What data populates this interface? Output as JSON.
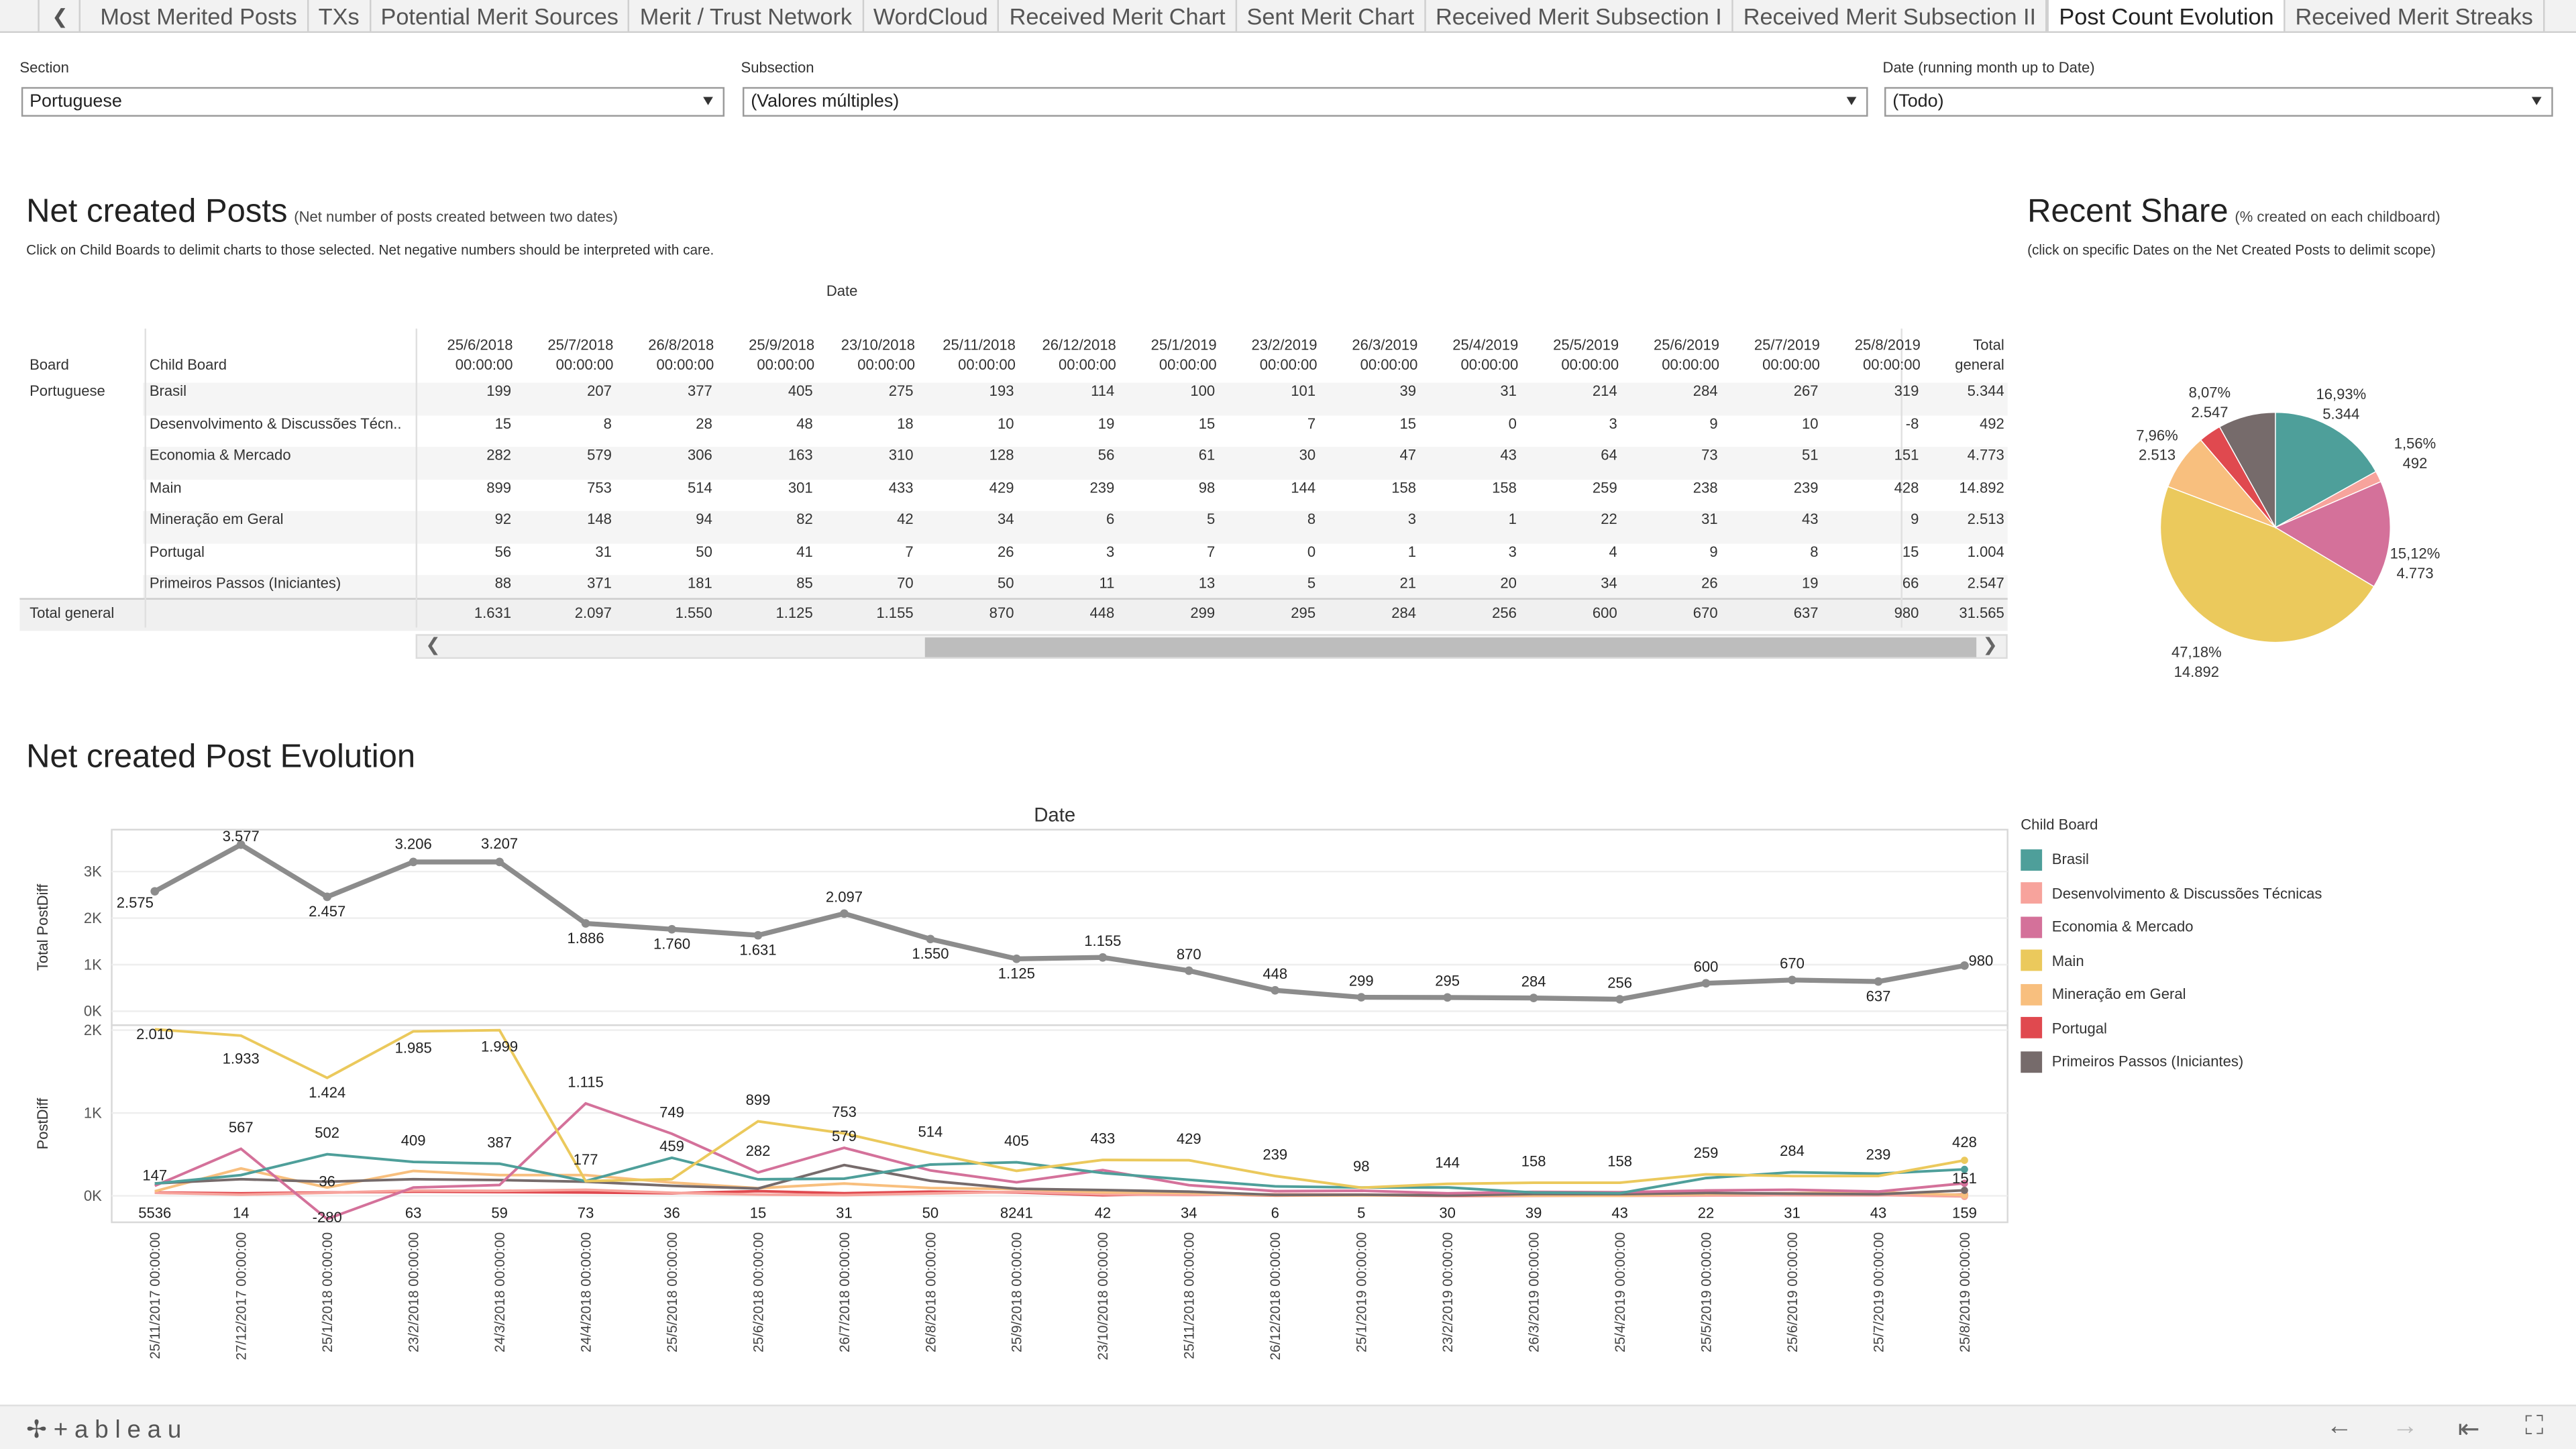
{
  "tabs": [
    "Most Merited Posts",
    "TXs",
    "Potential Merit Sources",
    "Merit / Trust Network",
    "WordCloud",
    "Received Merit Chart",
    "Sent Merit Chart",
    "Received Merit Subsection I",
    "Received Merit Subsection II",
    "Post Count Evolution",
    "Received Merit Streaks"
  ],
  "active_tab": "Post Count Evolution",
  "filters": {
    "section_label": "Section",
    "section_value": "Portuguese",
    "subsection_label": "Subsection",
    "subsection_value": "(Valores múltiples)",
    "date_label": "Date (running month up to Date)",
    "date_value": "(Todo)"
  },
  "net_posts": {
    "title": "Net created Posts",
    "subtitle": "(Net number of posts created between two dates)",
    "note": "Click on Child Boards to delimit charts to those selected. Net negative numbers should be interpreted  with care."
  },
  "recent_share": {
    "title": "Recent Share",
    "subtitle": "(% created on each childboard)",
    "note": "(click on specific Dates on the Net Created Posts to delimit scope)"
  },
  "evolution": {
    "title": "Net created Post Evolution"
  },
  "crosstab": {
    "date_header": "Date",
    "board_header": "Board",
    "child_header": "Child Board",
    "board_value": "Portuguese",
    "total_row_label": "Total general",
    "total_col_label": [
      "Total",
      "general"
    ],
    "dates": [
      "25/6/2018",
      "25/7/2018",
      "26/8/2018",
      "25/9/2018",
      "23/10/2018",
      "25/11/2018",
      "26/12/2018",
      "25/1/2019",
      "23/2/2019",
      "26/3/2019",
      "25/4/2019",
      "25/5/2019",
      "25/6/2019",
      "25/7/2019",
      "25/8/2019"
    ],
    "time": "00:00:00",
    "rows": [
      {
        "name": "Brasil",
        "values": [
          "199",
          "207",
          "377",
          "405",
          "275",
          "193",
          "114",
          "100",
          "101",
          "39",
          "31",
          "214",
          "284",
          "267",
          "319"
        ],
        "total": "5.344"
      },
      {
        "name": "Desenvolvimento & Discussões Técn..",
        "values": [
          "15",
          "8",
          "28",
          "48",
          "18",
          "10",
          "19",
          "15",
          "7",
          "15",
          "0",
          "3",
          "9",
          "10",
          "-8"
        ],
        "total": "492"
      },
      {
        "name": "Economia & Mercado",
        "values": [
          "282",
          "579",
          "306",
          "163",
          "310",
          "128",
          "56",
          "61",
          "30",
          "47",
          "43",
          "64",
          "73",
          "51",
          "151"
        ],
        "total": "4.773"
      },
      {
        "name": "Main",
        "values": [
          "899",
          "753",
          "514",
          "301",
          "433",
          "429",
          "239",
          "98",
          "144",
          "158",
          "158",
          "259",
          "238",
          "239",
          "428"
        ],
        "total": "14.892"
      },
      {
        "name": "Mineração em Geral",
        "values": [
          "92",
          "148",
          "94",
          "82",
          "42",
          "34",
          "6",
          "5",
          "8",
          "3",
          "1",
          "22",
          "31",
          "43",
          "9"
        ],
        "total": "2.513"
      },
      {
        "name": "Portugal",
        "values": [
          "56",
          "31",
          "50",
          "41",
          "7",
          "26",
          "3",
          "7",
          "0",
          "1",
          "3",
          "4",
          "9",
          "8",
          "15"
        ],
        "total": "1.004"
      },
      {
        "name": "Primeiros Passos (Iniciantes)",
        "values": [
          "88",
          "371",
          "181",
          "85",
          "70",
          "50",
          "11",
          "13",
          "5",
          "21",
          "20",
          "34",
          "26",
          "19",
          "66"
        ],
        "total": "2.547"
      }
    ],
    "totals": [
      "1.631",
      "2.097",
      "1.550",
      "1.125",
      "1.155",
      "870",
      "448",
      "299",
      "295",
      "284",
      "256",
      "600",
      "670",
      "637",
      "980"
    ],
    "grand_total": "31.565"
  },
  "legend": {
    "title": "Child Board",
    "items": [
      {
        "name": "Brasil",
        "color": "#4e9f9a"
      },
      {
        "name": "Desenvolvimento & Discussões Técnicas",
        "color": "#f7a39c"
      },
      {
        "name": "Economia & Mercado",
        "color": "#d4719a"
      },
      {
        "name": "Main",
        "color": "#ebc95c"
      },
      {
        "name": "Mineração em Geral",
        "color": "#f8bf7e"
      },
      {
        "name": "Portugal",
        "color": "#e0494f"
      },
      {
        "name": "Primeiros Passos (Iniciantes)",
        "color": "#766b6b"
      }
    ]
  },
  "chart_data": [
    {
      "type": "pie",
      "title": "Recent Share",
      "slices": [
        {
          "name": "Brasil",
          "value": 5344,
          "pct_label": "16,93%",
          "value_label": "5.344",
          "color": "#4e9f9a"
        },
        {
          "name": "Desenvolvimento & Discussões Técnicas",
          "value": 492,
          "pct_label": "1,56%",
          "value_label": "492",
          "color": "#f7a39c"
        },
        {
          "name": "Economia & Mercado",
          "value": 4773,
          "pct_label": "15,12%",
          "value_label": "4.773",
          "color": "#d4719a"
        },
        {
          "name": "Main",
          "value": 14892,
          "pct_label": "47,18%",
          "value_label": "14.892",
          "color": "#ebc95c"
        },
        {
          "name": "Mineração em Geral",
          "value": 2513,
          "pct_label": "7,96%",
          "value_label": "2.513",
          "color": "#f8bf7e"
        },
        {
          "name": "Portugal",
          "value": 1004,
          "pct_label": "",
          "value_label": "",
          "color": "#e0494f"
        },
        {
          "name": "Primeiros Passos (Iniciantes)",
          "value": 2547,
          "pct_label": "8,07%",
          "value_label": "2.547",
          "color": "#766b6b"
        }
      ]
    },
    {
      "type": "line",
      "title": "Date",
      "x": [
        "25/11/2017 00:00:00",
        "27/12/2017 00:00:00",
        "25/1/2018 00:00:00",
        "23/2/2018 00:00:00",
        "24/3/2018 00:00:00",
        "24/4/2018 00:00:00",
        "25/5/2018 00:00:00",
        "25/6/2018 00:00:00",
        "26/7/2018 00:00:00",
        "26/8/2018 00:00:00",
        "25/9/2018 00:00:00",
        "23/10/2018 00:00:00",
        "25/11/2018 00:00:00",
        "26/12/2018 00:00:00",
        "25/1/2019 00:00:00",
        "23/2/2019 00:00:00",
        "26/3/2019 00:00:00",
        "25/4/2019 00:00:00",
        "25/5/2019 00:00:00",
        "25/6/2019 00:00:00",
        "25/7/2019 00:00:00",
        "25/8/2019 00:00:00"
      ],
      "top_panel": {
        "ylabel": "Total PostDiff",
        "yticks": [
          "0K",
          "1K",
          "2K",
          "3K"
        ],
        "ylim": [
          -300,
          3900
        ],
        "series": [
          {
            "values": [
              2575,
              3577,
              2457,
              3206,
              3207,
              1886,
              1760,
              1631,
              2097,
              1550,
              1125,
              1155,
              870,
              448,
              299,
              295,
              284,
              256,
              600,
              670,
              637,
              980
            ],
            "labels": [
              "2.575",
              "3.577",
              "2.457",
              "3.206",
              "3.207",
              "1.886",
              "1.760",
              "1.631",
              "2.097",
              "1.550",
              "1.125",
              "1.155",
              "870",
              "448",
              "299",
              "295",
              "284",
              "256",
              "600",
              "670",
              "637",
              "980"
            ],
            "color": "#8c8c8c"
          }
        ]
      },
      "bottom_panel": {
        "ylabel": "PostDiff",
        "yticks": [
          "0K",
          "1K",
          "2K"
        ],
        "ylim": [
          -320,
          2060
        ],
        "series": [
          {
            "name": "Main",
            "color": "#ebc95c",
            "values": [
              2010,
              1933,
              1424,
              1985,
              1999,
              177,
              200,
              899,
              753,
              514,
              301,
              433,
              429,
              239,
              98,
              144,
              158,
              158,
              259,
              238,
              239,
              428
            ]
          },
          {
            "name": "Brasil",
            "color": "#4e9f9a",
            "values": [
              147,
              250,
              502,
              409,
              387,
              177,
              459,
              199,
              207,
              377,
              405,
              275,
              193,
              114,
              100,
              101,
              39,
              31,
              214,
              284,
              267,
              319
            ]
          },
          {
            "name": "Economia & Mercado",
            "color": "#d4719a",
            "values": [
              120,
              567,
              -280,
              100,
              130,
              1115,
              749,
              282,
              579,
              306,
              163,
              310,
              128,
              56,
              61,
              30,
              47,
              43,
              64,
              73,
              51,
              151
            ]
          },
          {
            "name": "Primeiros Passos (Iniciantes)",
            "color": "#766b6b",
            "values": [
              150,
              200,
              170,
              200,
              190,
              170,
              120,
              88,
              371,
              181,
              85,
              70,
              50,
              11,
              13,
              5,
              21,
              20,
              34,
              26,
              19,
              66
            ]
          },
          {
            "name": "Mineração em Geral",
            "color": "#f8bf7e",
            "values": [
              55,
              330,
              100,
              300,
              250,
              250,
              160,
              92,
              148,
              94,
              82,
              42,
              34,
              6,
              5,
              8,
              3,
              1,
              22,
              31,
              43,
              9
            ]
          },
          {
            "name": "Desenvolvimento & Discussões Técnicas",
            "color": "#f7a39c",
            "values": [
              36,
              14,
              36,
              63,
              59,
              73,
              36,
              15,
              8,
              28,
              48,
              18,
              10,
              19,
              15,
              7,
              15,
              0,
              3,
              9,
              10,
              -8
            ]
          },
          {
            "name": "Portugal",
            "color": "#e0494f",
            "values": [
              40,
              30,
              40,
              50,
              45,
              40,
              30,
              56,
              31,
              50,
              41,
              7,
              26,
              3,
              7,
              0,
              1,
              3,
              4,
              9,
              8,
              15
            ]
          }
        ],
        "labels": [
          {
            "i": 0,
            "text": "2.010",
            "v": 2010,
            "dy": 6
          },
          {
            "i": 1,
            "text": "1.933",
            "v": 1933,
            "dy": 17
          },
          {
            "i": 2,
            "text": "1.424",
            "v": 1424,
            "dy": 12
          },
          {
            "i": 3,
            "text": "1.985",
            "v": 1985,
            "dy": 13
          },
          {
            "i": 4,
            "text": "1.999",
            "v": 1999,
            "dy": 13
          },
          {
            "i": 5,
            "text": "1.115",
            "v": 1115,
            "dy": -10
          },
          {
            "i": 6,
            "text": "749",
            "v": 749,
            "dy": -10
          },
          {
            "i": 7,
            "text": "899",
            "v": 899,
            "dy": -10
          },
          {
            "i": 8,
            "text": "753",
            "v": 753,
            "dy": -10
          },
          {
            "i": 9,
            "text": "514",
            "v": 514,
            "dy": -10
          },
          {
            "i": 10,
            "text": "405",
            "v": 405,
            "dy": -10
          },
          {
            "i": 11,
            "text": "433",
            "v": 433,
            "dy": -10
          },
          {
            "i": 12,
            "text": "429",
            "v": 429,
            "dy": -10
          },
          {
            "i": 13,
            "text": "239",
            "v": 239,
            "dy": -10
          },
          {
            "i": 14,
            "text": "98",
            "v": 98,
            "dy": -10
          },
          {
            "i": 15,
            "text": "144",
            "v": 144,
            "dy": -10
          },
          {
            "i": 16,
            "text": "158",
            "v": 158,
            "dy": -10
          },
          {
            "i": 17,
            "text": "158",
            "v": 158,
            "dy": -10
          },
          {
            "i": 18,
            "text": "259",
            "v": 259,
            "dy": -10
          },
          {
            "i": 19,
            "text": "284",
            "v": 284,
            "dy": -10
          },
          {
            "i": 20,
            "text": "239",
            "v": 239,
            "dy": -10
          },
          {
            "i": 21,
            "text": "428",
            "v": 428,
            "dy": -8
          },
          {
            "i": 0,
            "text": "147",
            "v": 147,
            "dy": -2
          },
          {
            "i": 1,
            "text": "567",
            "v": 567,
            "dy": -10
          },
          {
            "i": 2,
            "text": "502",
            "v": 502,
            "dy": -10
          },
          {
            "i": 3,
            "text": "409",
            "v": 409,
            "dy": -10
          },
          {
            "i": 4,
            "text": "387",
            "v": 387,
            "dy": -10
          },
          {
            "i": 5,
            "text": "177",
            "v": 177,
            "dy": -10
          },
          {
            "i": 6,
            "text": "459",
            "v": 459,
            "dy": -4
          },
          {
            "i": 7,
            "text": "282",
            "v": 282,
            "dy": -10
          },
          {
            "i": 8,
            "text": "579",
            "v": 579,
            "dy": -4
          },
          {
            "i": 21,
            "text": "151",
            "v": 151,
            "dy": 0
          },
          {
            "i": 0,
            "text": "5536",
            "v": -70,
            "dy": 10
          },
          {
            "i": 1,
            "text": "14",
            "v": -70,
            "dy": 10
          },
          {
            "i": 2,
            "text": "36",
            "v": 36,
            "dy": -4
          },
          {
            "i": 2,
            "text": "-280",
            "v": -280,
            "dy": 2
          },
          {
            "i": 3,
            "text": "63",
            "v": -70,
            "dy": 10
          },
          {
            "i": 4,
            "text": "59",
            "v": -70,
            "dy": 10
          },
          {
            "i": 5,
            "text": "73",
            "v": -70,
            "dy": 10
          },
          {
            "i": 6,
            "text": "36",
            "v": -70,
            "dy": 10
          },
          {
            "i": 7,
            "text": "15",
            "v": -70,
            "dy": 10
          },
          {
            "i": 8,
            "text": "31",
            "v": -70,
            "dy": 10
          },
          {
            "i": 9,
            "text": "50",
            "v": -70,
            "dy": 10
          },
          {
            "i": 10,
            "text": "8241",
            "v": -70,
            "dy": 10
          },
          {
            "i": 11,
            "text": "42",
            "v": -70,
            "dy": 10
          },
          {
            "i": 12,
            "text": "34",
            "v": -70,
            "dy": 10
          },
          {
            "i": 13,
            "text": "6",
            "v": -70,
            "dy": 10
          },
          {
            "i": 14,
            "text": "5",
            "v": -70,
            "dy": 10
          },
          {
            "i": 15,
            "text": "30",
            "v": -70,
            "dy": 10
          },
          {
            "i": 16,
            "text": "39",
            "v": -70,
            "dy": 10
          },
          {
            "i": 17,
            "text": "43",
            "v": -70,
            "dy": 10
          },
          {
            "i": 18,
            "text": "22",
            "v": -70,
            "dy": 10
          },
          {
            "i": 19,
            "text": "31",
            "v": -70,
            "dy": 10
          },
          {
            "i": 20,
            "text": "43",
            "v": -70,
            "dy": 10
          },
          {
            "i": 21,
            "text": "159",
            "v": -70,
            "dy": 10
          }
        ]
      }
    }
  ],
  "brand": "+ableau"
}
